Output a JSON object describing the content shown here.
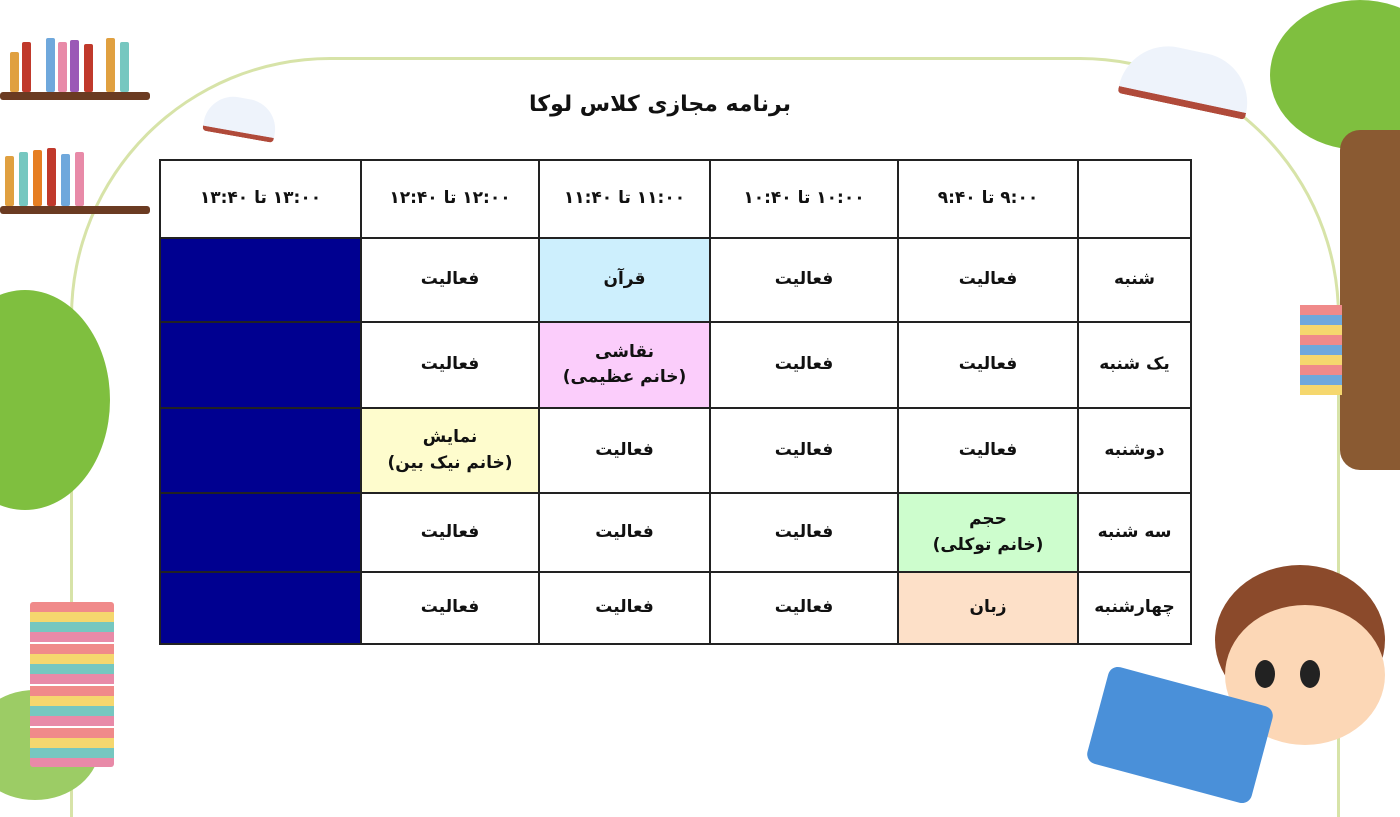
{
  "title": "برنامه مجازی کلاس لوکا",
  "colors": {
    "quran": "#cdeffd",
    "painting": "#fbcdfb",
    "show": "#fefccd",
    "volume": "#cdfdcd",
    "language": "#fde0c8",
    "blocked": "#000090"
  },
  "header": [
    "",
    "۹:۰۰ تا ۹:۴۰",
    "۱۰:۰۰ تا ۱۰:۴۰",
    "۱۱:۰۰ تا ۱۱:۴۰",
    "۱۲:۰۰ تا ۱۲:۴۰",
    "۱۳:۰۰ تا ۱۳:۴۰"
  ],
  "rows": [
    {
      "day": "شنبه",
      "cells": [
        "فعالیت",
        "فعالیت",
        "قرآن",
        "فعالیت",
        ""
      ]
    },
    {
      "day": "یک شنبه",
      "cells": [
        "فعالیت",
        "فعالیت",
        "نقاشی\n(خانم عظیمی)",
        "فعالیت",
        ""
      ]
    },
    {
      "day": "دوشنبه",
      "cells": [
        "فعالیت",
        "فعالیت",
        "فعالیت",
        "نمایش\n(خانم نیک بین)",
        ""
      ]
    },
    {
      "day": "سه شنبه",
      "cells": [
        "حجم\n(خانم توکلی)",
        "فعالیت",
        "فعالیت",
        "فعالیت",
        ""
      ]
    },
    {
      "day": "چهارشنبه",
      "cells": [
        "زبان",
        "فعالیت",
        "فعالیت",
        "فعالیت",
        ""
      ]
    }
  ]
}
